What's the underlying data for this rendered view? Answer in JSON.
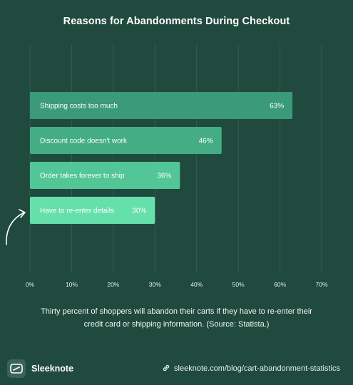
{
  "title": "Reasons for Abandonments During Checkout",
  "chart_data": {
    "type": "bar",
    "orientation": "horizontal",
    "categories": [
      "Shipping costs too much",
      "Discount code doesn't work",
      "Order takes forever to ship",
      "Have to re-enter details"
    ],
    "values": [
      63,
      46,
      36,
      30
    ],
    "value_labels": [
      "63%",
      "46%",
      "36%",
      "30%"
    ],
    "xlim": [
      0,
      70
    ],
    "xticks": [
      0,
      10,
      20,
      30,
      40,
      50,
      60,
      70
    ],
    "xtick_labels": [
      "0%",
      "10%",
      "20%",
      "30%",
      "40%",
      "50%",
      "60%",
      "70%"
    ],
    "grid": "vertical",
    "bar_colors": [
      "#3b9a79",
      "#45ad86",
      "#52c697",
      "#66e0ab"
    ],
    "highlight_index": 3
  },
  "caption_lines": [
    "Thirty percent of shoppers will abandon their carts if they have to re-enter their",
    "credit card or shipping information. (Source: Statista.)"
  ],
  "footer": {
    "brand": "Sleeknote",
    "source": "sleeknote.com/blog/cart-abandonment-statistics"
  },
  "colors": {
    "background": "#1f4a3d",
    "grid": "#2f5e50",
    "text": "#ffffff"
  },
  "icons": {
    "annotation": "curved-arrow-icon",
    "brand": "sleeknote-logo-icon",
    "source": "link-icon"
  }
}
